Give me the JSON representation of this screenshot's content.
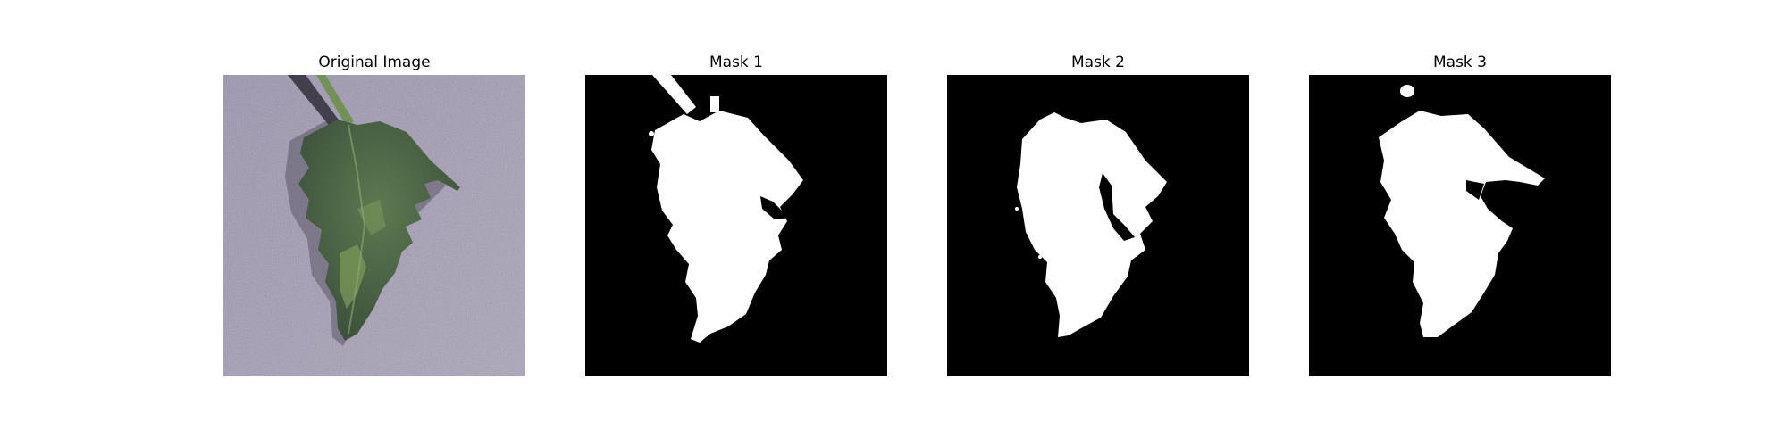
{
  "figure": {
    "panels": [
      {
        "title": "Original Image",
        "kind": "photo"
      },
      {
        "title": "Mask 1",
        "kind": "mask"
      },
      {
        "title": "Mask 2",
        "kind": "mask"
      },
      {
        "title": "Mask 3",
        "kind": "mask"
      }
    ]
  },
  "colors": {
    "mask_background": "#000000",
    "mask_foreground": "#ffffff",
    "backdrop": "#8e8aa3",
    "leaf": "#3f5b3a",
    "leaf_highlight": "#7c9a55",
    "stem": "#6d8f4f",
    "shadow": "#2a2633"
  }
}
